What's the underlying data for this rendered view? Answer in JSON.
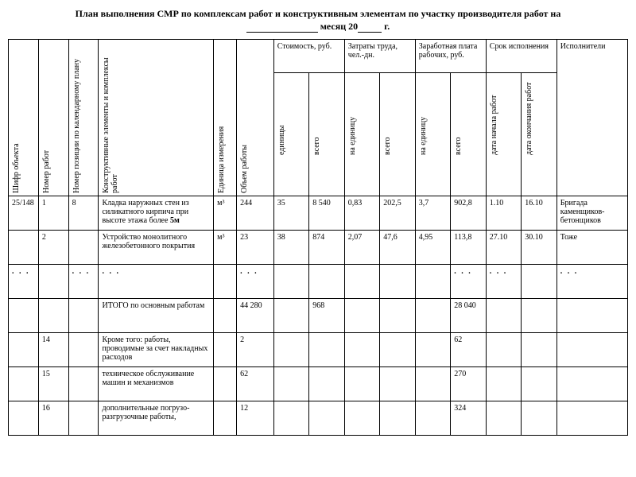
{
  "title_line1": "План выполнения СМР по комплексам работ и конструктивным элементам по участку производителя работ на",
  "title_line2_pre": "",
  "title_line2_mid": " месяц 20",
  "title_line2_post": " г.",
  "headers": {
    "c1": "Шифр объекта",
    "c2": "Номер работ",
    "c3": "Номер позиции по календарному плану",
    "c4": "Конструктивные элементы и комплексы работ",
    "c5": "Единица измерения",
    "c6": "Объем работы",
    "c7": "Стоимость, руб.",
    "c8": "Затраты труда, чел.-дн.",
    "c9": "Заработная плата рабочих, руб.",
    "c10": "Срок исполнения",
    "c11": "Исполнители",
    "s1": "единицы",
    "s2": "всего",
    "s3": "на единицу",
    "s4": "всего",
    "s5": "на единицу",
    "s6": "всего",
    "s7": "дата начала работ",
    "s8": "дата окончания работ"
  },
  "rows": [
    {
      "c1": "25/148",
      "c2": "1",
      "c3": "8",
      "c4": "Кладка наружных стен из силикатного кирпича при высоте этажа более",
      "c4b": "5м",
      "c5": "м³",
      "c6": "244",
      "s1": "35",
      "s2": "8 540",
      "s3": "0,83",
      "s4": "202,5",
      "s5": "3,7",
      "s6": "902,8",
      "s7": "1.10",
      "s8": "16.10",
      "c11": "Бригада каменщиков-бетонщиков"
    },
    {
      "c1": "",
      "c2": "2",
      "c3": "",
      "c4": "Устройство монолитного железобетонного покрытия",
      "c5": "м³",
      "c6": "23",
      "s1": "38",
      "s2": "874",
      "s3": "2,07",
      "s4": "47,6",
      "s5": "4,95",
      "s6": "113,8",
      "s7": "27.10",
      "s8": "30.10",
      "c11": "Тоже"
    },
    {
      "c1": ". . .",
      "c2": "",
      "c3": ". . .",
      "c4": ". . .",
      "c5": "",
      "c6": ". . .",
      "s1": "",
      "s2": "",
      "s3": "",
      "s4": "",
      "s5": "",
      "s6": ". . .",
      "s7": ". . .",
      "s8": "",
      "c11": ". . ."
    },
    {
      "c1": "",
      "c2": "",
      "c3": "",
      "c4": "ИТОГО по основным работам",
      "c5": "",
      "c6": "44 280",
      "s1": "",
      "s2": "968",
      "s3": "",
      "s4": "",
      "s5": "",
      "s6": "28 040",
      "s7": "",
      "s8": "",
      "c11": ""
    },
    {
      "c1": "",
      "c2": "14",
      "c3": "",
      "c4": "Кроме того: работы, проводимые за счет накладных расходов",
      "c5": "",
      "c6": "2",
      "s1": "",
      "s2": "",
      "s3": "",
      "s4": "",
      "s5": "",
      "s6": "62",
      "s7": "",
      "s8": "",
      "c11": ""
    },
    {
      "c1": "",
      "c2": "15",
      "c3": "",
      "c4": "техническое обслуживание машин и механизмов",
      "c5": "",
      "c6": "62",
      "s1": "",
      "s2": "",
      "s3": "",
      "s4": "",
      "s5": "",
      "s6": "270",
      "s7": "",
      "s8": "",
      "c11": ""
    },
    {
      "c1": "",
      "c2": "16",
      "c3": "",
      "c4": "дополнительные погрузо-разгрузочные работы,",
      "c5": "",
      "c6": "12",
      "s1": "",
      "s2": "",
      "s3": "",
      "s4": "",
      "s5": "",
      "s6": "324",
      "s7": "",
      "s8": "",
      "c11": ""
    }
  ],
  "colwidths": [
    "34",
    "34",
    "34",
    "130",
    "26",
    "42",
    "40",
    "40",
    "40",
    "40",
    "40",
    "40",
    "40",
    "40",
    "80"
  ],
  "style": {
    "font": "Times New Roman",
    "border_color": "#000000",
    "background_color": "#ffffff"
  }
}
